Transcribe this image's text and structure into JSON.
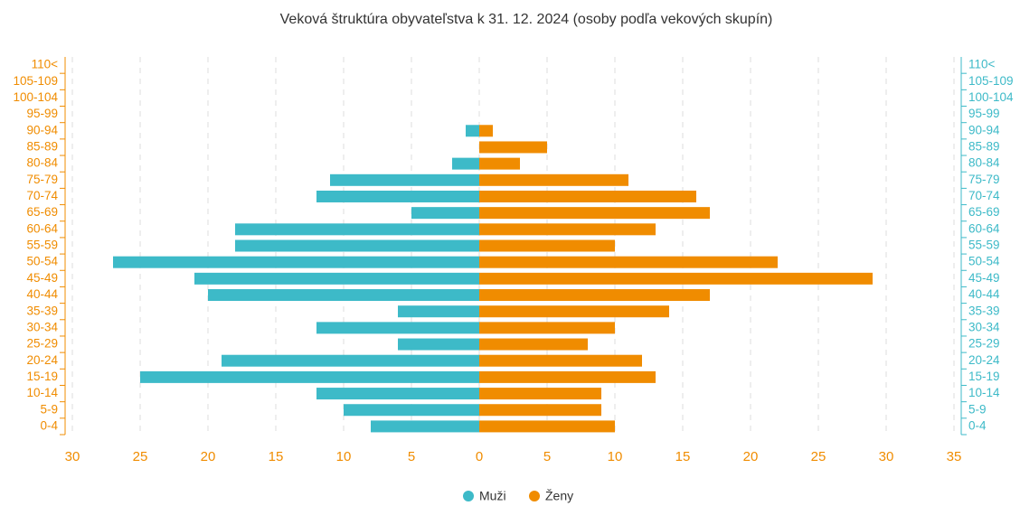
{
  "chart_data": {
    "type": "bar",
    "orientation": "horizontal",
    "title": "Veková štruktúra obyvateľstva k 31. 12. 2024 (osoby podľa vekových skupín)",
    "categories": [
      "0-4",
      "5-9",
      "10-14",
      "15-19",
      "20-24",
      "25-29",
      "30-34",
      "35-39",
      "40-44",
      "45-49",
      "50-54",
      "55-59",
      "60-64",
      "65-69",
      "70-74",
      "75-79",
      "80-84",
      "85-89",
      "90-94",
      "95-99",
      "100-104",
      "105-109",
      "110<"
    ],
    "series": [
      {
        "name": "Muži",
        "color": "#3dbac8",
        "values": [
          -8,
          -10,
          -12,
          -25,
          -19,
          -6,
          -12,
          -6,
          -20,
          -21,
          -27,
          -18,
          -18,
          -5,
          -12,
          -11,
          -2,
          0,
          -1,
          0,
          0,
          0,
          0
        ]
      },
      {
        "name": "Ženy",
        "color": "#f08c00",
        "values": [
          10,
          9,
          9,
          13,
          12,
          8,
          10,
          14,
          17,
          29,
          22,
          10,
          13,
          17,
          16,
          11,
          3,
          5,
          1,
          0,
          0,
          0,
          0
        ]
      }
    ],
    "xlim": [
      -30,
      35
    ],
    "xticks": [
      {
        "value": -30,
        "label": "30"
      },
      {
        "value": -25,
        "label": "25"
      },
      {
        "value": -20,
        "label": "20"
      },
      {
        "value": -15,
        "label": "15"
      },
      {
        "value": -10,
        "label": "10"
      },
      {
        "value": -5,
        "label": "5"
      },
      0,
      5,
      10,
      15,
      20,
      25,
      30,
      35
    ],
    "grid": true,
    "legend": "bottom"
  }
}
